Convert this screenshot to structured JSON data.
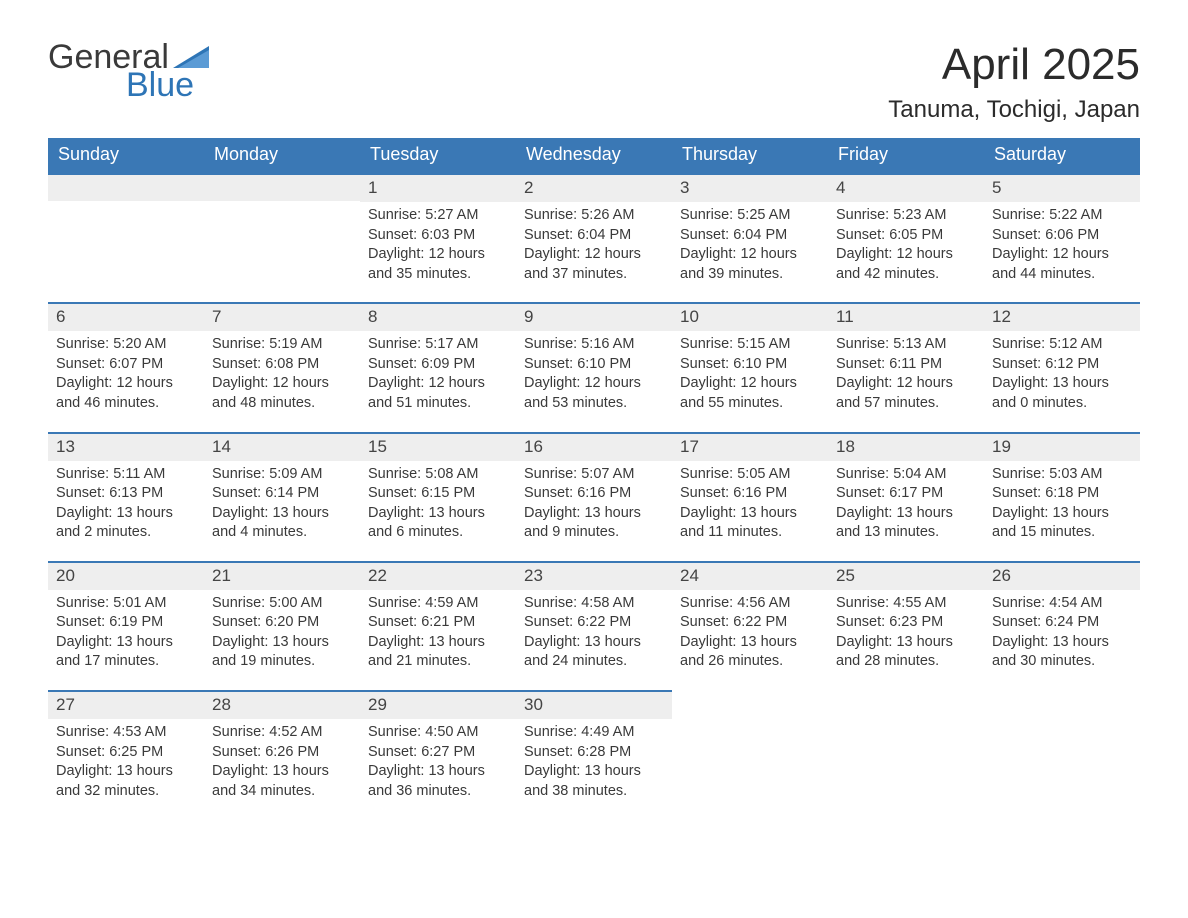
{
  "logo": {
    "word1": "General",
    "word2": "Blue",
    "color1": "#3a3a3a",
    "color2": "#2e75b6",
    "flag_color": "#2e75b6"
  },
  "title": "April 2025",
  "location": "Tanuma, Tochigi, Japan",
  "styling": {
    "header_bg": "#3a78b5",
    "header_text": "#ffffff",
    "daynum_bg": "#eeeeee",
    "daynum_border_top": "#3a78b5",
    "body_bg": "#ffffff",
    "text_color": "#3a3a3a",
    "title_fontsize": 44,
    "location_fontsize": 24,
    "header_fontsize": 18,
    "daynum_fontsize": 17,
    "body_fontsize": 14.5,
    "columns": 7,
    "type": "calendar"
  },
  "day_names": [
    "Sunday",
    "Monday",
    "Tuesday",
    "Wednesday",
    "Thursday",
    "Friday",
    "Saturday"
  ],
  "weeks": [
    [
      null,
      null,
      {
        "n": "1",
        "sr": "5:27 AM",
        "ss": "6:03 PM",
        "dl": "12 hours and 35 minutes."
      },
      {
        "n": "2",
        "sr": "5:26 AM",
        "ss": "6:04 PM",
        "dl": "12 hours and 37 minutes."
      },
      {
        "n": "3",
        "sr": "5:25 AM",
        "ss": "6:04 PM",
        "dl": "12 hours and 39 minutes."
      },
      {
        "n": "4",
        "sr": "5:23 AM",
        "ss": "6:05 PM",
        "dl": "12 hours and 42 minutes."
      },
      {
        "n": "5",
        "sr": "5:22 AM",
        "ss": "6:06 PM",
        "dl": "12 hours and 44 minutes."
      }
    ],
    [
      {
        "n": "6",
        "sr": "5:20 AM",
        "ss": "6:07 PM",
        "dl": "12 hours and 46 minutes."
      },
      {
        "n": "7",
        "sr": "5:19 AM",
        "ss": "6:08 PM",
        "dl": "12 hours and 48 minutes."
      },
      {
        "n": "8",
        "sr": "5:17 AM",
        "ss": "6:09 PM",
        "dl": "12 hours and 51 minutes."
      },
      {
        "n": "9",
        "sr": "5:16 AM",
        "ss": "6:10 PM",
        "dl": "12 hours and 53 minutes."
      },
      {
        "n": "10",
        "sr": "5:15 AM",
        "ss": "6:10 PM",
        "dl": "12 hours and 55 minutes."
      },
      {
        "n": "11",
        "sr": "5:13 AM",
        "ss": "6:11 PM",
        "dl": "12 hours and 57 minutes."
      },
      {
        "n": "12",
        "sr": "5:12 AM",
        "ss": "6:12 PM",
        "dl": "13 hours and 0 minutes."
      }
    ],
    [
      {
        "n": "13",
        "sr": "5:11 AM",
        "ss": "6:13 PM",
        "dl": "13 hours and 2 minutes."
      },
      {
        "n": "14",
        "sr": "5:09 AM",
        "ss": "6:14 PM",
        "dl": "13 hours and 4 minutes."
      },
      {
        "n": "15",
        "sr": "5:08 AM",
        "ss": "6:15 PM",
        "dl": "13 hours and 6 minutes."
      },
      {
        "n": "16",
        "sr": "5:07 AM",
        "ss": "6:16 PM",
        "dl": "13 hours and 9 minutes."
      },
      {
        "n": "17",
        "sr": "5:05 AM",
        "ss": "6:16 PM",
        "dl": "13 hours and 11 minutes."
      },
      {
        "n": "18",
        "sr": "5:04 AM",
        "ss": "6:17 PM",
        "dl": "13 hours and 13 minutes."
      },
      {
        "n": "19",
        "sr": "5:03 AM",
        "ss": "6:18 PM",
        "dl": "13 hours and 15 minutes."
      }
    ],
    [
      {
        "n": "20",
        "sr": "5:01 AM",
        "ss": "6:19 PM",
        "dl": "13 hours and 17 minutes."
      },
      {
        "n": "21",
        "sr": "5:00 AM",
        "ss": "6:20 PM",
        "dl": "13 hours and 19 minutes."
      },
      {
        "n": "22",
        "sr": "4:59 AM",
        "ss": "6:21 PM",
        "dl": "13 hours and 21 minutes."
      },
      {
        "n": "23",
        "sr": "4:58 AM",
        "ss": "6:22 PM",
        "dl": "13 hours and 24 minutes."
      },
      {
        "n": "24",
        "sr": "4:56 AM",
        "ss": "6:22 PM",
        "dl": "13 hours and 26 minutes."
      },
      {
        "n": "25",
        "sr": "4:55 AM",
        "ss": "6:23 PM",
        "dl": "13 hours and 28 minutes."
      },
      {
        "n": "26",
        "sr": "4:54 AM",
        "ss": "6:24 PM",
        "dl": "13 hours and 30 minutes."
      }
    ],
    [
      {
        "n": "27",
        "sr": "4:53 AM",
        "ss": "6:25 PM",
        "dl": "13 hours and 32 minutes."
      },
      {
        "n": "28",
        "sr": "4:52 AM",
        "ss": "6:26 PM",
        "dl": "13 hours and 34 minutes."
      },
      {
        "n": "29",
        "sr": "4:50 AM",
        "ss": "6:27 PM",
        "dl": "13 hours and 36 minutes."
      },
      {
        "n": "30",
        "sr": "4:49 AM",
        "ss": "6:28 PM",
        "dl": "13 hours and 38 minutes."
      },
      null,
      null,
      null
    ]
  ],
  "labels": {
    "sunrise": "Sunrise: ",
    "sunset": "Sunset: ",
    "daylight": "Daylight: "
  }
}
